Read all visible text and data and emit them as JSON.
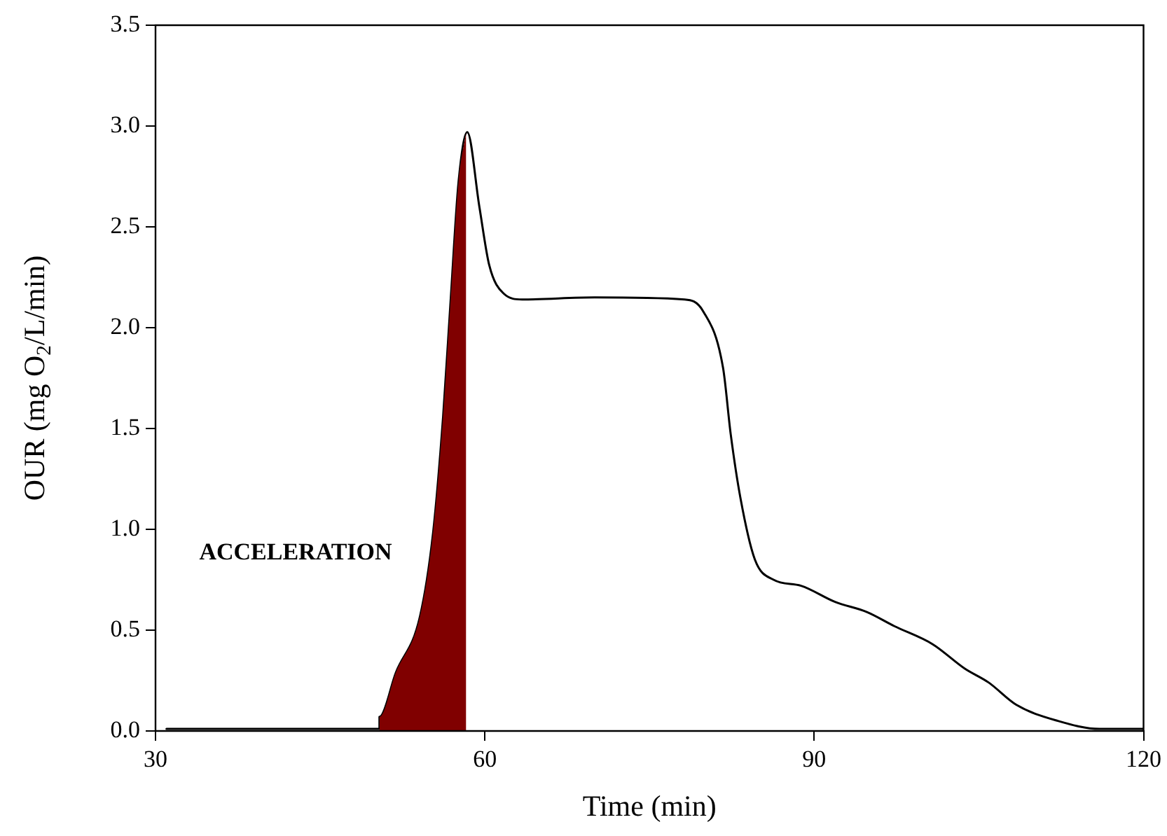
{
  "chart_data": {
    "type": "line",
    "xlabel": "Time (min)",
    "ylabel": "OUR (mg O$_{2}$/L/min)",
    "xlim": [
      30,
      120
    ],
    "xticks": [
      30,
      60,
      90,
      120
    ],
    "ylim": [
      0,
      3.5
    ],
    "yticks": [
      {
        "value": 0,
        "label": "0.0"
      },
      {
        "value": 0.5,
        "label": "0.5"
      },
      {
        "value": 1,
        "label": "1.0"
      },
      {
        "value": 1.5,
        "label": "1.5"
      },
      {
        "value": 2,
        "label": "2.0"
      },
      {
        "value": 2.5,
        "label": "2.5"
      },
      {
        "value": 3,
        "label": "3.0"
      },
      {
        "value": 3.5,
        "label": "3.5"
      }
    ],
    "grid": false,
    "legend": false,
    "marker": "none",
    "line_style": "solid",
    "series": [
      {
        "type": "area",
        "color": "#800000",
        "x": [
          50.4,
          50.4,
          51.9,
          54.1,
          55.3,
          56.2,
          56.9,
          57.6,
          58.3
        ],
        "values": [
          0.01,
          0.07,
          0.29,
          0.57,
          0.99,
          1.56,
          2.15,
          2.72,
          2.97
        ]
      },
      {
        "color": "#000000",
        "x": [
          31,
          50.4,
          50.4,
          51.9,
          54.1,
          55.3,
          56.2,
          56.9,
          57.6,
          58.4,
          59.5,
          60.4,
          61.7,
          63.4,
          70,
          78.2,
          79.9,
          81.7,
          82.4,
          83.3,
          84.6,
          86.3,
          88.8,
          91.9,
          94.8,
          97.3,
          100.8,
          103.7,
          105.9,
          108.4,
          112.2,
          116,
          120
        ],
        "values": [
          0.01,
          0.01,
          0.07,
          0.29,
          0.57,
          0.99,
          1.56,
          2.15,
          2.72,
          2.97,
          2.6,
          2.31,
          2.17,
          2.14,
          2.15,
          2.14,
          2.08,
          1.8,
          1.47,
          1.15,
          0.85,
          0.75,
          0.72,
          0.64,
          0.59,
          0.52,
          0.43,
          0.31,
          0.24,
          0.13,
          0.05,
          0.01,
          0.01
        ]
      }
    ],
    "annotations": [
      "ACCELERATION"
    ]
  }
}
